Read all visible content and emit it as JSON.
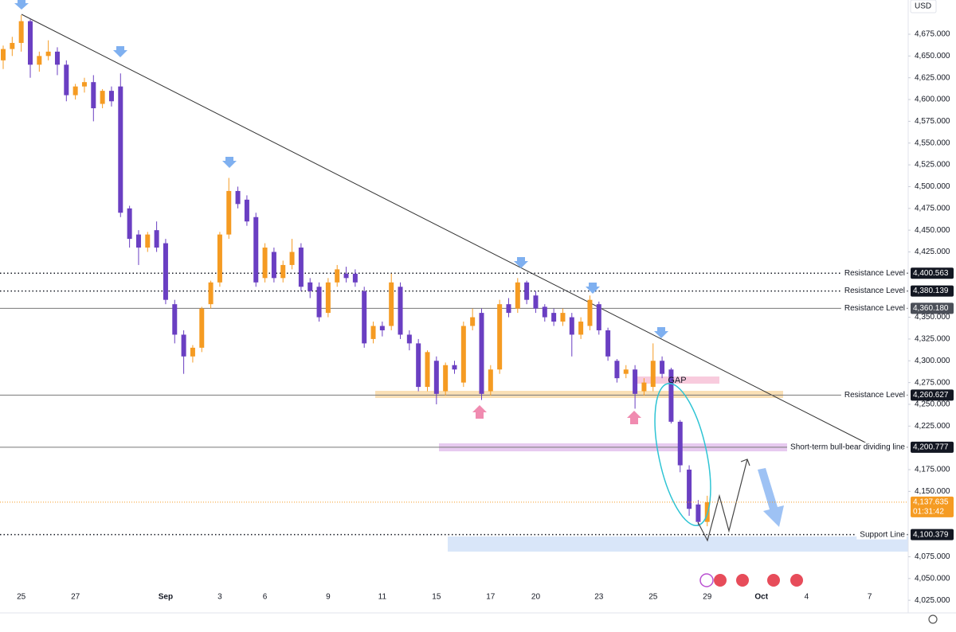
{
  "chart_data": {
    "type": "candlestick",
    "currency": "USD",
    "up_color": "#f59b22",
    "down_color": "#6a3fc2",
    "grid": false,
    "ylim": [
      4010.5,
      4714.3
    ],
    "yticks": [
      {
        "value": 4675,
        "label": "4,675.000"
      },
      {
        "value": 4650,
        "label": "4,650.000"
      },
      {
        "value": 4625,
        "label": "4,625.000"
      },
      {
        "value": 4600,
        "label": "4,600.000"
      },
      {
        "value": 4575,
        "label": "4,575.000"
      },
      {
        "value": 4550,
        "label": "4,550.000"
      },
      {
        "value": 4525,
        "label": "4,525.000"
      },
      {
        "value": 4500,
        "label": "4,500.000"
      },
      {
        "value": 4475,
        "label": "4,475.000"
      },
      {
        "value": 4450,
        "label": "4,450.000"
      },
      {
        "value": 4425,
        "label": "4,425.000"
      },
      {
        "value": 4350,
        "label": "4,350.000"
      },
      {
        "value": 4325,
        "label": "4,325.000"
      },
      {
        "value": 4300,
        "label": "4,300.000"
      },
      {
        "value": 4275,
        "label": "4,275.000"
      },
      {
        "value": 4250,
        "label": "4,250.000"
      },
      {
        "value": 4225,
        "label": "4,225.000"
      },
      {
        "value": 4175,
        "label": "4,175.000"
      },
      {
        "value": 4150,
        "label": "4,150.000"
      },
      {
        "value": 4075,
        "label": "4,075.000"
      },
      {
        "value": 4050,
        "label": "4,050.000"
      },
      {
        "value": 4025,
        "label": "4,025.000"
      }
    ],
    "categories": [
      null,
      null,
      "25",
      null,
      null,
      null,
      null,
      null,
      "27",
      null,
      null,
      null,
      null,
      null,
      null,
      null,
      null,
      null,
      "Sep",
      null,
      null,
      null,
      null,
      null,
      "3",
      null,
      null,
      null,
      null,
      "6",
      null,
      null,
      null,
      null,
      null,
      null,
      "9",
      null,
      null,
      null,
      null,
      null,
      "11",
      null,
      null,
      null,
      null,
      null,
      "15",
      null,
      null,
      null,
      null,
      null,
      "17",
      null,
      null,
      null,
      null,
      "20",
      null,
      null,
      null,
      null,
      null,
      null,
      "23",
      null,
      null,
      null,
      null,
      null,
      "25",
      null,
      null,
      null,
      null,
      null,
      "29",
      null,
      null,
      null,
      null,
      null,
      "Oct",
      null,
      null,
      null,
      null,
      "4",
      null,
      null,
      null,
      null,
      null,
      null,
      "7",
      null,
      null,
      null
    ],
    "open": [
      4645,
      4658,
      4665,
      4690,
      4640,
      4650,
      4655,
      4640,
      4605,
      4615,
      4620,
      4595,
      4610,
      4615,
      4475,
      4445,
      4430,
      4450,
      4435,
      4365,
      4330,
      4305,
      4315,
      4365,
      4390,
      4445,
      4495,
      4485,
      4465,
      4395,
      4425,
      4395,
      4410,
      4430,
      4390,
      4385,
      4355,
      4390,
      4400,
      4400,
      4380,
      4325,
      4340,
      4340,
      4385,
      4330,
      4320,
      4270,
      4300,
      4265,
      4295,
      4275,
      4340,
      4355,
      4265,
      4290,
      4365,
      4360,
      4390,
      4375,
      4362,
      4355,
      4345,
      4350,
      4330,
      4340,
      4365,
      4335,
      4300,
      4285,
      4290,
      4265,
      4270,
      4300,
      4290,
      4230,
      4175,
      4135,
      4115,
      null,
      null,
      null,
      null,
      null,
      null,
      null,
      null,
      null,
      null,
      null,
      null,
      null,
      null,
      null,
      null,
      null,
      null,
      null,
      null,
      null
    ],
    "high": [
      4662,
      4672,
      4697,
      4692,
      4655,
      4668,
      4660,
      4645,
      4618,
      4625,
      4628,
      4612,
      4615,
      4630,
      4478,
      4450,
      4448,
      4460,
      4440,
      4370,
      4335,
      4318,
      4362,
      4392,
      4448,
      4510,
      4500,
      4490,
      4470,
      4435,
      4430,
      4415,
      4440,
      4435,
      4395,
      4390,
      4395,
      4410,
      4408,
      4405,
      4385,
      4345,
      4345,
      4400,
      4390,
      4335,
      4325,
      4312,
      4305,
      4298,
      4300,
      4345,
      4360,
      4360,
      4295,
      4370,
      4372,
      4395,
      4392,
      4380,
      4365,
      4360,
      4360,
      4355,
      4350,
      4375,
      4368,
      4338,
      4302,
      4295,
      4295,
      4280,
      4320,
      4305,
      4292,
      4232,
      4180,
      4140,
      4145,
      null,
      null,
      null,
      null,
      null,
      null,
      null,
      null,
      null,
      null,
      null,
      null,
      null,
      null,
      null,
      null,
      null,
      null,
      null,
      null,
      null
    ],
    "low": [
      4635,
      4650,
      4655,
      4625,
      4632,
      4645,
      4628,
      4598,
      4600,
      4608,
      4575,
      4590,
      4592,
      4465,
      4430,
      4410,
      4425,
      4425,
      4365,
      4320,
      4285,
      4298,
      4310,
      4360,
      4385,
      4440,
      4475,
      4455,
      4385,
      4390,
      4390,
      4390,
      4405,
      4380,
      4372,
      4345,
      4350,
      4385,
      4390,
      4385,
      4315,
      4320,
      4328,
      4335,
      4325,
      4312,
      4265,
      4265,
      4250,
      4260,
      4285,
      4270,
      4335,
      4255,
      4260,
      4285,
      4350,
      4355,
      4365,
      4355,
      4345,
      4340,
      4340,
      4305,
      4325,
      4335,
      4330,
      4300,
      4275,
      4280,
      4245,
      4260,
      4265,
      4280,
      4228,
      4172,
      4122,
      4110,
      4110,
      null,
      null,
      null,
      null,
      null,
      null,
      null,
      null,
      null,
      null,
      null,
      null,
      null,
      null,
      null,
      null,
      null,
      null,
      null,
      null,
      null
    ],
    "close": [
      4658,
      4665,
      4690,
      4640,
      4650,
      4655,
      4640,
      4605,
      4615,
      4620,
      4590,
      4610,
      4598,
      4470,
      4440,
      4430,
      4445,
      4430,
      4370,
      4330,
      4305,
      4315,
      4360,
      4390,
      4445,
      4495,
      4480,
      4460,
      4390,
      4430,
      4395,
      4410,
      4425,
      4385,
      4380,
      4350,
      4390,
      4405,
      4395,
      4390,
      4320,
      4340,
      4335,
      4390,
      4330,
      4320,
      4270,
      4310,
      4262,
      4295,
      4290,
      4340,
      4350,
      4262,
      4290,
      4365,
      4355,
      4390,
      4370,
      4360,
      4350,
      4345,
      4355,
      4330,
      4345,
      4370,
      4335,
      4305,
      4280,
      4290,
      4262,
      4275,
      4300,
      4285,
      4230,
      4180,
      4130,
      4115,
      4137.635,
      null,
      null,
      null,
      null,
      null,
      null,
      null,
      null,
      null,
      null,
      null,
      null,
      null,
      null,
      null,
      null,
      null,
      null,
      null,
      null,
      null
    ],
    "last_price": {
      "value": 4137.635,
      "label": "4,137.635",
      "countdown": "01:31:42"
    },
    "annotation": "GAP",
    "levels": [
      {
        "name": "Resistance Level",
        "value": 4400.563,
        "label": "4,400.563",
        "style": "dotted",
        "box": "#131722"
      },
      {
        "name": "Resistance Level",
        "value": 4380.139,
        "label": "4,380.139",
        "style": "dotted",
        "box": "#131722"
      },
      {
        "name": "Resistance Level",
        "value": 4360.18,
        "label": "4,360.180",
        "style": "solid",
        "box": "#4b4f58"
      },
      {
        "name": "Resistance Level",
        "value": 4260.627,
        "label": "4,260.627",
        "style": "solid",
        "box": "#131722"
      },
      {
        "name": "Short-term bull-bear dividing line",
        "value": 4200.777,
        "label": "4,200.777",
        "style": "solid",
        "box": "#131722"
      },
      {
        "name": "Support Line",
        "value": 4100.379,
        "label": "4,100.379",
        "style": "dotted",
        "box": "#131722"
      }
    ]
  }
}
